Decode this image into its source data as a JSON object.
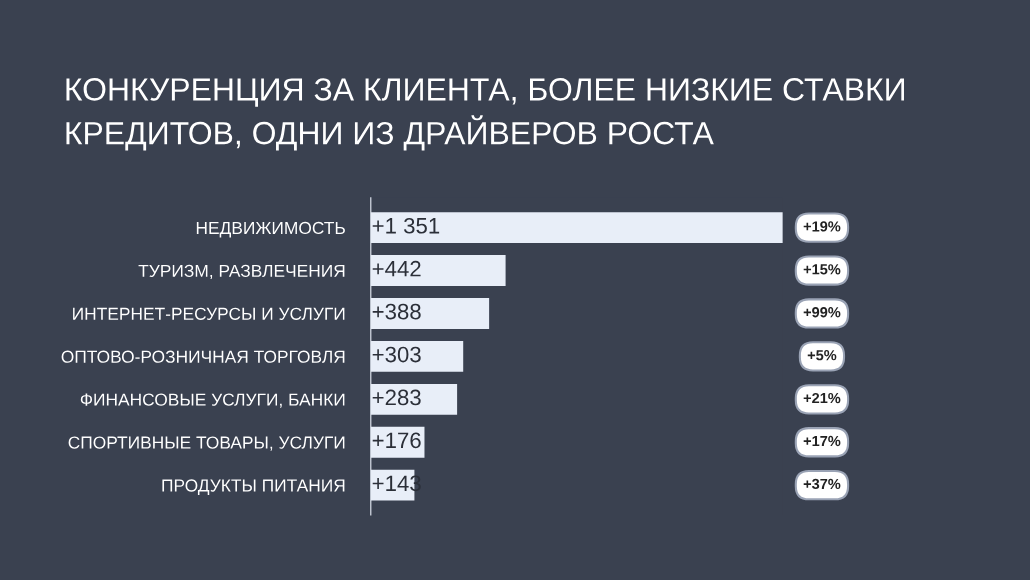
{
  "chart_data": {
    "type": "bar",
    "orientation": "horizontal",
    "title": "КОНКУРЕНЦИЯ ЗА КЛИЕНТА, БОЛЕЕ НИЗКИЕ СТАВКИ\nКРЕДИТОВ, ОДНИ ИЗ ДРАЙВЕРОВ РОСТА",
    "categories": [
      "НЕДВИЖИМОСТЬ",
      "ТУРИЗМ, РАЗВЛЕЧЕНИЯ",
      "ИНТЕРНЕТ-РЕСУРСЫ И УСЛУГИ",
      "ОПТОВО-РОЗНИЧНАЯ ТОРГОВЛЯ",
      "ФИНАНСОВЫЕ УСЛУГИ, БАНКИ",
      "СПОРТИВНЫЕ ТОВАРЫ, УСЛУГИ",
      "ПРОДУКТЫ ПИТАНИЯ"
    ],
    "values": [
      1351,
      442,
      388,
      303,
      283,
      176,
      143
    ],
    "value_labels": [
      "+1 351",
      "+442",
      "+388",
      "+303",
      "+283",
      "+176",
      "+143"
    ],
    "color": "#e8eef8",
    "annotations": [
      "+19%",
      "+15%",
      "+99%",
      "+5%",
      "+21%",
      "+17%",
      "+37%"
    ],
    "tick_labels": "y",
    "grid": false,
    "legend": false
  }
}
